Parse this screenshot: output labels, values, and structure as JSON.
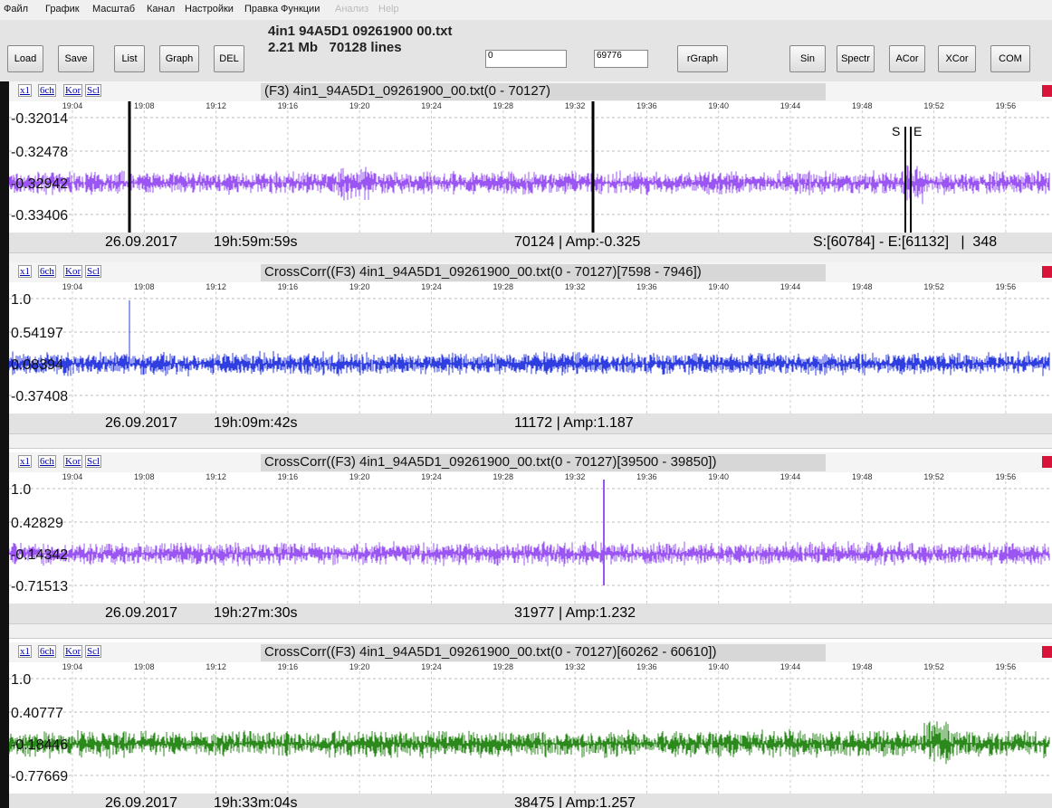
{
  "menu": [
    "Файл",
    "График",
    "Масштаб",
    "Канал",
    "Настройки",
    "Правка",
    "Функции",
    "Анализ",
    "Help"
  ],
  "toolbar": {
    "left_buttons": [
      "Load",
      "Save",
      "List",
      "Graph",
      "DEL"
    ],
    "file_name": "4in1 94A5D1 09261900 00.txt",
    "file_info": "2.21 Mb   70128 lines",
    "input_start": "0",
    "input_end": "69776",
    "right_buttons": [
      "rGraph",
      "Sin",
      "Spectr",
      "ACor",
      "XCor",
      "COM"
    ]
  },
  "tabs": [
    "x1",
    "6ch",
    "Kor",
    "Scl"
  ],
  "time_ticks": [
    "19:04",
    "19:08",
    "19:12",
    "19:16",
    "19:20",
    "19:24",
    "19:28",
    "19:32",
    "19:36",
    "19:40",
    "19:44",
    "19:48",
    "19:52",
    "19:56"
  ],
  "panels": [
    {
      "title": "(F3) 4in1_94A5D1_09261900_00.txt(0 - 70127)",
      "y_labels": [
        "-0.32014",
        "-0.32478",
        "-0.32942",
        "-0.33406"
      ],
      "date": "26.09.2017",
      "time": "19h:59m:59s",
      "cursor": "70124 | Amp:-0.325",
      "selection": "S:[60784] - E:[61132]   |  348",
      "markers": [
        "S",
        "E"
      ]
    },
    {
      "title": "CrossCorr((F3) 4in1_94A5D1_09261900_00.txt(0 - 70127)[7598 - 7946])",
      "y_labels": [
        "1.0",
        "0.54197",
        "0.08394",
        "-0.37408"
      ],
      "date": "26.09.2017",
      "time": "19h:09m:42s",
      "cursor": "11172 | Amp:1.187"
    },
    {
      "title": "CrossCorr((F3) 4in1_94A5D1_09261900_00.txt(0 - 70127)[39500 - 39850])",
      "y_labels": [
        "1.0",
        "0.42829",
        "-0.14342",
        "-0.71513"
      ],
      "date": "26.09.2017",
      "time": "19h:27m:30s",
      "cursor": "31977 | Amp:1.232"
    },
    {
      "title": "CrossCorr((F3) 4in1_94A5D1_09261900_00.txt(0 - 70127)[60262 - 60610])",
      "y_labels": [
        "1.0",
        "0.40777",
        "-0.18446",
        "-0.77669"
      ],
      "date": "26.09.2017",
      "time": "19h:33m:04s",
      "cursor": "38475 | Amp:1.257"
    }
  ]
}
